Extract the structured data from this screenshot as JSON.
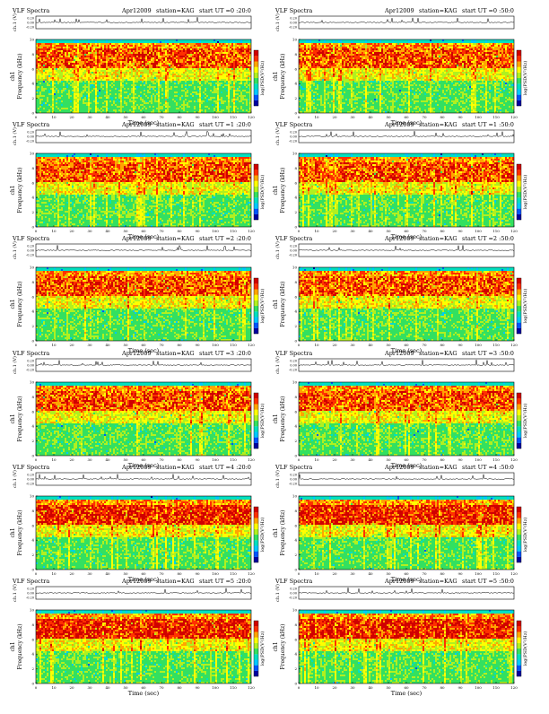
{
  "chart_data": [
    {
      "type": "heatmap",
      "title": "VLF Spectra",
      "date": "Apr12009",
      "station": "station=KAG",
      "start": "start  UT =0 :20:0",
      "xlabel": "Time (sec)",
      "ylabel": "Frequency (kHz)",
      "ylabel2": "ch1",
      "cb_label": "log(PSD(V²/Hz)",
      "top_ylabel": "ch.1 (V)",
      "xlim": [
        0,
        120
      ],
      "ylim": [
        0,
        10
      ],
      "x_ticks": [
        0,
        10,
        20,
        30,
        40,
        50,
        60,
        70,
        80,
        90,
        100,
        110,
        120
      ],
      "y_ticks": [
        0,
        2,
        4,
        6,
        8,
        10
      ],
      "top_ticks": [
        "0.20",
        "0.00",
        "-0.20"
      ]
    },
    {
      "type": "heatmap",
      "title": "VLF Spectra",
      "date": "Apr12009",
      "station": "station=KAG",
      "start": "start  UT =0 :50:0",
      "xlabel": "Time (sec)",
      "ylabel": "Frequency (kHz)",
      "ylabel2": "ch1",
      "cb_label": "log(PSD(V²/Hz)",
      "top_ylabel": "ch.1 (V)",
      "xlim": [
        0,
        120
      ],
      "ylim": [
        0,
        10
      ],
      "x_ticks": [
        0,
        10,
        20,
        30,
        40,
        50,
        60,
        70,
        80,
        90,
        100,
        110,
        120
      ],
      "y_ticks": [
        0,
        2,
        4,
        6,
        8,
        10
      ],
      "top_ticks": [
        "0.20",
        "0.00",
        "-0.20"
      ]
    },
    {
      "type": "heatmap",
      "title": "VLF Spectra",
      "date": "Apr12009",
      "station": "station=KAG",
      "start": "start  UT =1 :20:0",
      "xlabel": "Time (sec)",
      "ylabel": "Frequency (kHz)",
      "ylabel2": "ch1",
      "cb_label": "log(PSD(V²/Hz)",
      "top_ylabel": "ch.1 (V)",
      "xlim": [
        0,
        120
      ],
      "ylim": [
        0,
        10
      ],
      "x_ticks": [
        0,
        10,
        20,
        30,
        40,
        50,
        60,
        70,
        80,
        90,
        100,
        110,
        120
      ],
      "y_ticks": [
        0,
        2,
        4,
        6,
        8,
        10
      ],
      "top_ticks": [
        "0.20",
        "0.00",
        "-0.20"
      ]
    },
    {
      "type": "heatmap",
      "title": "VLF Spectra",
      "date": "Apr12009",
      "station": "station=KAG",
      "start": "start  UT =1 :50:0",
      "xlabel": "Time (sec)",
      "ylabel": "Frequency (kHz)",
      "ylabel2": "ch1",
      "cb_label": "log(PSD(V²/Hz)",
      "top_ylabel": "ch.1 (V)",
      "xlim": [
        0,
        120
      ],
      "ylim": [
        0,
        10
      ],
      "x_ticks": [
        0,
        10,
        20,
        30,
        40,
        50,
        60,
        70,
        80,
        90,
        100,
        110,
        120
      ],
      "y_ticks": [
        0,
        2,
        4,
        6,
        8,
        10
      ],
      "top_ticks": [
        "0.20",
        "0.00",
        "-0.20"
      ]
    },
    {
      "type": "heatmap",
      "title": "VLF Spectra",
      "date": "Apr12009",
      "station": "station=KAG",
      "start": "start  UT =2 :20:0",
      "xlabel": "Time (sec)",
      "ylabel": "Frequency (kHz)",
      "ylabel2": "ch1",
      "cb_label": "log(PSD(V²/Hz)",
      "top_ylabel": "ch.1 (V)",
      "xlim": [
        0,
        120
      ],
      "ylim": [
        0,
        10
      ],
      "x_ticks": [
        0,
        10,
        20,
        30,
        40,
        50,
        60,
        70,
        80,
        90,
        100,
        110,
        120
      ],
      "y_ticks": [
        0,
        2,
        4,
        6,
        8,
        10
      ],
      "top_ticks": [
        "0.20",
        "0.00",
        "-0.20"
      ]
    },
    {
      "type": "heatmap",
      "title": "VLF Spectra",
      "date": "Apr12009",
      "station": "station=KAG",
      "start": "start  UT =2 :50:0",
      "xlabel": "Time (sec)",
      "ylabel": "Frequency (kHz)",
      "ylabel2": "ch1",
      "cb_label": "log(PSD(V²/Hz)",
      "top_ylabel": "ch.1 (V)",
      "xlim": [
        0,
        120
      ],
      "ylim": [
        0,
        10
      ],
      "x_ticks": [
        0,
        10,
        20,
        30,
        40,
        50,
        60,
        70,
        80,
        90,
        100,
        110,
        120
      ],
      "y_ticks": [
        0,
        2,
        4,
        6,
        8,
        10
      ],
      "top_ticks": [
        "0.20",
        "0.00",
        "-0.20"
      ]
    },
    {
      "type": "heatmap",
      "title": "VLF Spectra",
      "date": "Apr12009",
      "station": "station=KAG",
      "start": "start  UT =3 :20:0",
      "xlabel": "Time (sec)",
      "ylabel": "Frequency (kHz)",
      "ylabel2": "ch1",
      "cb_label": "log(PSD(V²/Hz)",
      "top_ylabel": "ch.1 (V)",
      "xlim": [
        0,
        120
      ],
      "ylim": [
        0,
        10
      ],
      "x_ticks": [
        0,
        10,
        20,
        30,
        40,
        50,
        60,
        70,
        80,
        90,
        100,
        110,
        120
      ],
      "y_ticks": [
        0,
        2,
        4,
        6,
        8,
        10
      ],
      "top_ticks": [
        "0.20",
        "0.00",
        "-0.20"
      ]
    },
    {
      "type": "heatmap",
      "title": "VLF Spectra",
      "date": "Apr12009",
      "station": "station=KAG",
      "start": "start  UT =3 :50:0",
      "xlabel": "Time (sec)",
      "ylabel": "Frequency (kHz)",
      "ylabel2": "ch1",
      "cb_label": "log(PSD(V²/Hz)",
      "top_ylabel": "ch.1 (V)",
      "xlim": [
        0,
        120
      ],
      "ylim": [
        0,
        10
      ],
      "x_ticks": [
        0,
        10,
        20,
        30,
        40,
        50,
        60,
        70,
        80,
        90,
        100,
        110,
        120
      ],
      "y_ticks": [
        0,
        2,
        4,
        6,
        8,
        10
      ],
      "top_ticks": [
        "0.20",
        "0.00",
        "-0.20"
      ]
    },
    {
      "type": "heatmap",
      "title": "VLF Spectra",
      "date": "Apr12009",
      "station": "station=KAG",
      "start": "start  UT =4 :20:0",
      "xlabel": "Time (sec)",
      "ylabel": "Frequency (kHz)",
      "ylabel2": "ch1",
      "cb_label": "log(PSD(V²/Hz)",
      "top_ylabel": "ch.1 (V)",
      "xlim": [
        0,
        120
      ],
      "ylim": [
        0,
        10
      ],
      "x_ticks": [
        0,
        10,
        20,
        30,
        40,
        50,
        60,
        70,
        80,
        90,
        100,
        110,
        120
      ],
      "y_ticks": [
        0,
        2,
        4,
        6,
        8,
        10
      ],
      "top_ticks": [
        "0.20",
        "0.00",
        "-0.20"
      ]
    },
    {
      "type": "heatmap",
      "title": "VLF Spectra",
      "date": "Apr12009",
      "station": "station=KAG",
      "start": "start  UT =4 :50:0",
      "xlabel": "Time (sec)",
      "ylabel": "Frequency (kHz)",
      "ylabel2": "ch1",
      "cb_label": "log(PSD(V²/Hz)",
      "top_ylabel": "ch.1 (V)",
      "xlim": [
        0,
        120
      ],
      "ylim": [
        0,
        10
      ],
      "x_ticks": [
        0,
        10,
        20,
        30,
        40,
        50,
        60,
        70,
        80,
        90,
        100,
        110,
        120
      ],
      "y_ticks": [
        0,
        2,
        4,
        6,
        8,
        10
      ],
      "top_ticks": [
        "0.20",
        "0.00",
        "-0.20"
      ]
    },
    {
      "type": "heatmap",
      "title": "VLF Spectra",
      "date": "Apr12009",
      "station": "station=KAG",
      "start": "start  UT =5 :20:0",
      "xlabel": "Time (sec)",
      "ylabel": "Frequency (kHz)",
      "ylabel2": "ch1",
      "cb_label": "log(PSD(V²/Hz)",
      "top_ylabel": "ch.1 (V)",
      "xlim": [
        0,
        120
      ],
      "ylim": [
        0,
        10
      ],
      "x_ticks": [
        0,
        10,
        20,
        30,
        40,
        50,
        60,
        70,
        80,
        90,
        100,
        110,
        120
      ],
      "y_ticks": [
        0,
        2,
        4,
        6,
        8,
        10
      ],
      "top_ticks": [
        "0.20",
        "0.00",
        "-0.20"
      ]
    },
    {
      "type": "heatmap",
      "title": "VLF Spectra",
      "date": "Apr12009",
      "station": "station=KAG",
      "start": "start  UT =5 :50:0",
      "xlabel": "Time (sec)",
      "ylabel": "Frequency (kHz)",
      "ylabel2": "ch1",
      "cb_label": "log(PSD(V²/Hz)",
      "top_ylabel": "ch.1 (V)",
      "xlim": [
        0,
        120
      ],
      "ylim": [
        0,
        10
      ],
      "x_ticks": [
        0,
        10,
        20,
        30,
        40,
        50,
        60,
        70,
        80,
        90,
        100,
        110,
        120
      ],
      "y_ticks": [
        0,
        2,
        4,
        6,
        8,
        10
      ],
      "top_ticks": [
        "0.20",
        "0.00",
        "-0.20"
      ]
    }
  ],
  "colors": {
    "colormap": [
      "#0000a0",
      "#0055ff",
      "#00c8ff",
      "#00e0c0",
      "#33e060",
      "#b0f020",
      "#ffff00",
      "#ffa500",
      "#ff3000",
      "#d00000"
    ],
    "axis": "#000000",
    "trace": "#000000"
  }
}
